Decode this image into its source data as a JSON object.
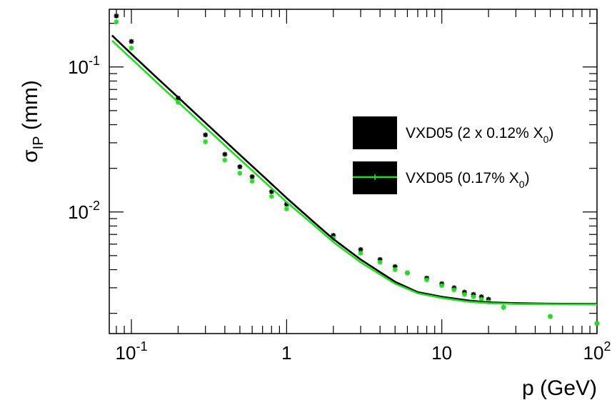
{
  "chart_data": {
    "type": "scatter",
    "title": "",
    "xlabel": "p (GeV)",
    "ylabel": {
      "main": "σ",
      "sub": "IP",
      "unit": "(mm)"
    },
    "xscale": "log",
    "yscale": "log",
    "xlim": [
      0.072,
      100
    ],
    "ylim": [
      0.00145,
      0.25
    ],
    "x_ticks": [
      {
        "v": 0.1,
        "base": "10",
        "exp": "-1"
      },
      {
        "v": 1,
        "base": "1",
        "exp": ""
      },
      {
        "v": 10,
        "base": "10",
        "exp": ""
      },
      {
        "v": 100,
        "base": "10",
        "exp": "2"
      }
    ],
    "y_ticks": [
      {
        "v": 0.1,
        "base": "10",
        "exp": "-1"
      },
      {
        "v": 0.01,
        "base": "10",
        "exp": "-2"
      }
    ],
    "legend_position": "right",
    "series": [
      {
        "name": "VXD05 (2 x 0.12% X0)",
        "label_parts": {
          "pre": "VXD05 (2 x 0.12% X",
          "sub": "0",
          "post": ")"
        },
        "color": "#000000",
        "curve": {
          "x": [
            0.075,
            0.1,
            0.15,
            0.2,
            0.3,
            0.5,
            0.7,
            1,
            1.5,
            2,
            3,
            5,
            7,
            10,
            15,
            20,
            30,
            50,
            100
          ],
          "y": [
            0.165,
            0.123,
            0.082,
            0.0617,
            0.0412,
            0.0248,
            0.0178,
            0.0125,
            0.0085,
            0.0065,
            0.0047,
            0.0033,
            0.0028,
            0.0026,
            0.00245,
            0.00238,
            0.00235,
            0.00233,
            0.00232
          ]
        },
        "points": {
          "x": [
            0.08,
            0.1,
            0.2,
            0.3,
            0.4,
            0.5,
            0.6,
            0.8,
            1,
            2,
            3,
            4,
            5,
            6,
            8,
            10,
            12,
            14,
            16,
            18,
            20,
            25,
            50,
            100
          ],
          "y": [
            0.225,
            0.15,
            0.061,
            0.034,
            0.025,
            0.0205,
            0.0175,
            0.0138,
            0.0113,
            0.0069,
            0.0055,
            0.0047,
            0.0042,
            0.0038,
            0.0035,
            0.0032,
            0.003,
            0.0028,
            0.0027,
            0.0026,
            0.0025,
            0.0022,
            0.0019,
            0.0017
          ]
        }
      },
      {
        "name": "VXD05 (0.17% X0)",
        "label_parts": {
          "pre": "VXD05 (0.17% X",
          "sub": "0",
          "post": ")"
        },
        "color": "#22dd22",
        "curve": {
          "x": [
            0.075,
            0.1,
            0.15,
            0.2,
            0.3,
            0.5,
            0.7,
            1,
            1.5,
            2,
            3,
            5,
            7,
            10,
            15,
            20,
            30,
            50,
            100
          ],
          "y": [
            0.152,
            0.114,
            0.076,
            0.0573,
            0.0383,
            0.0231,
            0.0166,
            0.0117,
            0.0081,
            0.0062,
            0.0045,
            0.0032,
            0.00275,
            0.00255,
            0.0024,
            0.00235,
            0.00232,
            0.00231,
            0.0023
          ]
        },
        "points": {
          "x": [
            0.08,
            0.1,
            0.2,
            0.3,
            0.4,
            0.5,
            0.6,
            0.8,
            1,
            2,
            3,
            4,
            5,
            6,
            8,
            10,
            12,
            14,
            16,
            18,
            20,
            25,
            50,
            100
          ],
          "y": [
            0.205,
            0.135,
            0.057,
            0.0305,
            0.0228,
            0.0185,
            0.0163,
            0.0128,
            0.0105,
            0.0066,
            0.0052,
            0.0045,
            0.004,
            0.0038,
            0.0034,
            0.0031,
            0.0029,
            0.0027,
            0.0026,
            0.0025,
            0.0024,
            0.0022,
            0.0019,
            0.0017
          ]
        }
      }
    ]
  }
}
